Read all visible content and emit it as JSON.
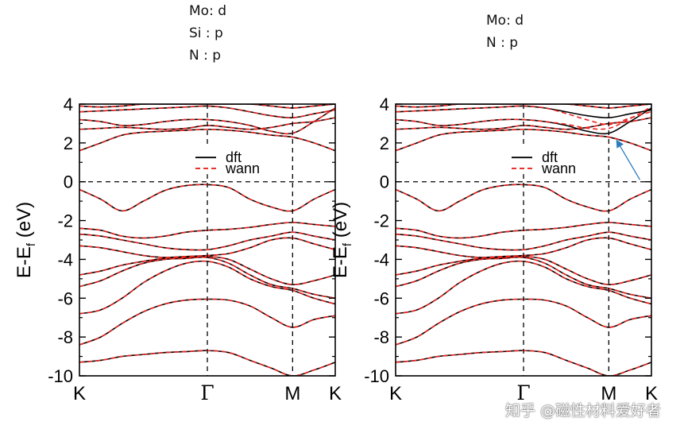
{
  "notes": {
    "left": [
      "Mo: d",
      "Si : p",
      "N : p"
    ],
    "right": [
      "Mo: d",
      "N : p"
    ]
  },
  "colors": {
    "dft": "#000000",
    "wann": "#e8231f",
    "arrow": "#2b7bbf"
  },
  "watermark": "知乎 @磁性材料爱好者",
  "chart_data": [
    {
      "type": "line",
      "title": "",
      "ylabel": "E-E_f (eV)",
      "ylabel_main": "E-E",
      "ylabel_sub": "f",
      "ylabel_unit": " (eV)",
      "ylim": [
        -10,
        4
      ],
      "yticks": [
        4,
        2,
        0,
        -2,
        -4,
        -6,
        -8,
        -10
      ],
      "ytick_labels": [
        "4",
        "2",
        "0",
        "-2",
        "-4",
        "-6",
        "-8",
        "-10"
      ],
      "xlim": [
        0,
        1
      ],
      "kpoints": [
        {
          "label": "K",
          "x": 0
        },
        {
          "label": "Γ",
          "x": 0.5
        },
        {
          "label": "M",
          "x": 0.8333
        },
        {
          "label": "K",
          "x": 1
        }
      ],
      "legend": [
        "dft",
        "wann"
      ],
      "x": [
        0,
        0.0833,
        0.1667,
        0.25,
        0.3333,
        0.4167,
        0.5,
        0.5833,
        0.6667,
        0.75,
        0.8333,
        0.9167,
        1
      ],
      "series": [
        {
          "name": "dft band 1",
          "values": [
            -9.3,
            -9.2,
            -9.0,
            -8.9,
            -8.8,
            -8.75,
            -8.7,
            -8.8,
            -9.2,
            -9.6,
            -10.0,
            -9.7,
            -9.3
          ]
        },
        {
          "name": "dft band 2",
          "values": [
            -8.4,
            -8.0,
            -7.3,
            -6.7,
            -6.3,
            -6.1,
            -6.05,
            -6.1,
            -6.4,
            -7.0,
            -7.5,
            -7.1,
            -6.9
          ]
        },
        {
          "name": "dft band 3",
          "values": [
            -6.8,
            -6.6,
            -6.0,
            -5.2,
            -4.6,
            -4.2,
            -4.1,
            -4.4,
            -5.0,
            -5.4,
            -5.6,
            -6.0,
            -6.3
          ]
        },
        {
          "name": "dft band 4",
          "values": [
            -5.4,
            -5.1,
            -4.6,
            -4.2,
            -4.0,
            -3.95,
            -3.9,
            -4.2,
            -4.8,
            -5.3,
            -5.5,
            -5.8,
            -6.0
          ]
        },
        {
          "name": "dft band 5",
          "values": [
            -4.8,
            -4.6,
            -4.3,
            -4.1,
            -3.95,
            -3.9,
            -3.85,
            -4.0,
            -4.5,
            -5.0,
            -5.3,
            -5.1,
            -4.8
          ]
        },
        {
          "name": "dft band 6",
          "values": [
            -3.3,
            -3.4,
            -3.6,
            -3.8,
            -3.9,
            -3.85,
            -3.8,
            -3.7,
            -3.4,
            -3.0,
            -2.9,
            -3.2,
            -3.5
          ]
        },
        {
          "name": "dft band 7",
          "values": [
            -2.7,
            -2.8,
            -3.0,
            -3.2,
            -3.4,
            -3.5,
            -3.5,
            -3.3,
            -3.0,
            -2.8,
            -2.6,
            -2.8,
            -3.0
          ]
        },
        {
          "name": "dft band 8",
          "values": [
            -2.4,
            -2.5,
            -2.8,
            -2.9,
            -2.8,
            -2.6,
            -2.5,
            -2.45,
            -2.35,
            -2.2,
            -2.1,
            -2.2,
            -2.3
          ]
        },
        {
          "name": "dft band 9",
          "values": [
            -0.4,
            -0.9,
            -1.5,
            -1.0,
            -0.45,
            -0.2,
            -0.15,
            -0.3,
            -0.9,
            -1.3,
            -1.5,
            -0.9,
            -0.4
          ]
        },
        {
          "name": "dft band 10",
          "values": [
            1.6,
            2.0,
            2.4,
            2.55,
            2.6,
            2.65,
            2.7,
            2.65,
            2.55,
            2.4,
            2.3,
            2.0,
            1.6
          ]
        },
        {
          "name": "dft band 11",
          "values": [
            2.7,
            2.75,
            2.8,
            2.75,
            2.7,
            2.75,
            2.9,
            2.8,
            2.7,
            2.8,
            3.0,
            3.1,
            3.3
          ]
        },
        {
          "name": "dft band 12",
          "values": [
            3.2,
            3.1,
            2.9,
            2.95,
            3.1,
            3.2,
            3.2,
            3.1,
            2.9,
            2.6,
            2.5,
            3.1,
            3.8
          ]
        },
        {
          "name": "dft band 13",
          "values": [
            3.6,
            3.65,
            3.7,
            3.75,
            3.8,
            3.85,
            3.9,
            3.8,
            3.6,
            3.4,
            3.3,
            3.5,
            3.7
          ]
        },
        {
          "name": "dft band 14",
          "values": [
            3.9,
            3.85,
            3.9,
            4.0,
            4.0,
            4.0,
            4.0,
            4.0,
            4.0,
            3.9,
            3.8,
            3.9,
            4.0
          ]
        }
      ],
      "wann_offsets_eV": [
        0,
        0,
        0,
        0,
        0,
        0,
        0,
        0,
        0,
        0,
        0,
        0,
        0,
        0
      ]
    },
    {
      "type": "line",
      "title": "",
      "ylabel": "E-E_f (eV)",
      "ylabel_main": "E-E",
      "ylabel_sub": "f",
      "ylabel_unit": " (eV)",
      "ylim": [
        -10,
        4
      ],
      "yticks": [
        4,
        2,
        0,
        -2,
        -4,
        -6,
        -8,
        -10
      ],
      "ytick_labels": [
        "4",
        "2",
        "0",
        "-2",
        "-4",
        "-6",
        "-8",
        "-10"
      ],
      "xlim": [
        0,
        1
      ],
      "kpoints": [
        {
          "label": "K",
          "x": 0
        },
        {
          "label": "Γ",
          "x": 0.5
        },
        {
          "label": "M",
          "x": 0.8333
        },
        {
          "label": "K",
          "x": 1
        }
      ],
      "legend": [
        "dft",
        "wann"
      ],
      "annotation": "arrow pointing to deviation of wann from dft near M in conduction bands",
      "x": [
        0,
        0.0833,
        0.1667,
        0.25,
        0.3333,
        0.4167,
        0.5,
        0.5833,
        0.6667,
        0.75,
        0.8333,
        0.9167,
        1
      ],
      "series": [
        {
          "name": "dft band 1",
          "values": [
            -9.3,
            -9.2,
            -9.0,
            -8.9,
            -8.8,
            -8.75,
            -8.7,
            -8.8,
            -9.2,
            -9.6,
            -10.0,
            -9.7,
            -9.3
          ]
        },
        {
          "name": "dft band 2",
          "values": [
            -8.4,
            -8.0,
            -7.3,
            -6.7,
            -6.3,
            -6.1,
            -6.05,
            -6.1,
            -6.4,
            -7.0,
            -7.5,
            -7.1,
            -6.9
          ]
        },
        {
          "name": "dft band 3",
          "values": [
            -6.8,
            -6.6,
            -6.0,
            -5.2,
            -4.6,
            -4.2,
            -4.1,
            -4.4,
            -5.0,
            -5.4,
            -5.6,
            -6.0,
            -6.3
          ]
        },
        {
          "name": "dft band 4",
          "values": [
            -5.4,
            -5.1,
            -4.6,
            -4.2,
            -4.0,
            -3.95,
            -3.9,
            -4.2,
            -4.8,
            -5.3,
            -5.5,
            -5.8,
            -6.0
          ]
        },
        {
          "name": "dft band 5",
          "values": [
            -4.8,
            -4.6,
            -4.3,
            -4.1,
            -3.95,
            -3.9,
            -3.85,
            -4.0,
            -4.5,
            -5.0,
            -5.3,
            -5.1,
            -4.8
          ]
        },
        {
          "name": "dft band 6",
          "values": [
            -3.3,
            -3.4,
            -3.6,
            -3.8,
            -3.9,
            -3.85,
            -3.8,
            -3.7,
            -3.4,
            -3.0,
            -2.9,
            -3.2,
            -3.5
          ]
        },
        {
          "name": "dft band 7",
          "values": [
            -2.7,
            -2.8,
            -3.0,
            -3.2,
            -3.4,
            -3.5,
            -3.5,
            -3.3,
            -3.0,
            -2.8,
            -2.6,
            -2.8,
            -3.0
          ]
        },
        {
          "name": "dft band 8",
          "values": [
            -2.4,
            -2.5,
            -2.8,
            -2.9,
            -2.8,
            -2.6,
            -2.5,
            -2.45,
            -2.35,
            -2.2,
            -2.1,
            -2.2,
            -2.3
          ]
        },
        {
          "name": "dft band 9",
          "values": [
            -0.4,
            -0.9,
            -1.5,
            -1.0,
            -0.45,
            -0.2,
            -0.15,
            -0.3,
            -0.9,
            -1.3,
            -1.5,
            -0.9,
            -0.4
          ]
        },
        {
          "name": "dft band 10",
          "values": [
            1.6,
            2.0,
            2.4,
            2.55,
            2.6,
            2.65,
            2.7,
            2.65,
            2.55,
            2.4,
            2.3,
            2.0,
            1.6
          ]
        },
        {
          "name": "dft band 11",
          "values": [
            2.7,
            2.75,
            2.8,
            2.75,
            2.7,
            2.75,
            2.9,
            2.8,
            2.7,
            2.8,
            3.0,
            3.1,
            3.3
          ]
        },
        {
          "name": "dft band 12",
          "values": [
            3.2,
            3.1,
            2.9,
            2.95,
            3.1,
            3.2,
            3.2,
            3.1,
            2.9,
            2.6,
            2.5,
            3.1,
            3.8
          ]
        },
        {
          "name": "dft band 13",
          "values": [
            3.6,
            3.65,
            3.7,
            3.75,
            3.8,
            3.85,
            3.9,
            3.8,
            3.6,
            3.4,
            3.3,
            3.5,
            3.7
          ]
        },
        {
          "name": "dft band 14",
          "values": [
            3.9,
            3.85,
            3.9,
            4.0,
            4.0,
            4.0,
            4.0,
            4.0,
            4.0,
            3.9,
            3.8,
            3.9,
            4.0
          ]
        }
      ],
      "wann_offsets_eV": [
        0,
        0,
        0,
        0,
        0,
        0,
        0,
        0,
        0,
        0,
        0,
        0.25,
        -0.35,
        0
      ]
    }
  ]
}
